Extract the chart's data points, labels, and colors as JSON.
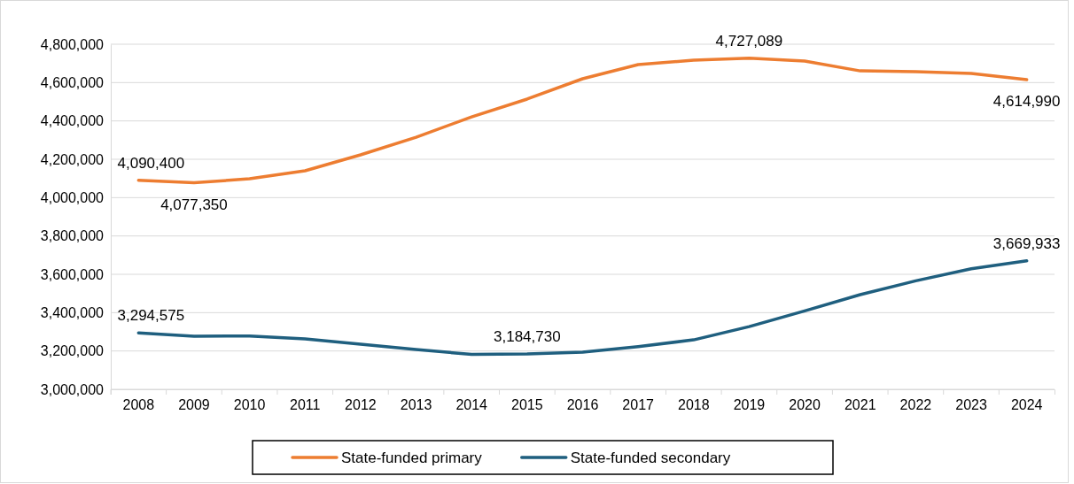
{
  "chart_data": {
    "type": "line",
    "categories": [
      "2008",
      "2009",
      "2010",
      "2011",
      "2012",
      "2013",
      "2014",
      "2015",
      "2016",
      "2017",
      "2018",
      "2019",
      "2020",
      "2021",
      "2022",
      "2023",
      "2024"
    ],
    "series": [
      {
        "name": "State-funded primary",
        "color": "#ed7d31",
        "values": [
          4090400,
          4077350,
          4098000,
          4140000,
          4223000,
          4315000,
          4421000,
          4514000,
          4620000,
          4694000,
          4717000,
          4727089,
          4712000,
          4661000,
          4657000,
          4648000,
          4614990
        ]
      },
      {
        "name": "State-funded secondary",
        "color": "#1f5f7f",
        "values": [
          3294575,
          3277000,
          3278000,
          3263000,
          3235000,
          3208000,
          3182000,
          3184730,
          3194000,
          3223000,
          3258000,
          3327000,
          3409000,
          3494000,
          3566000,
          3629000,
          3669933
        ]
      }
    ],
    "ylim": [
      3000000,
      4800000
    ],
    "yticks": [
      {
        "value": 3000000,
        "label": "3,000,000"
      },
      {
        "value": 3200000,
        "label": "3,200,000"
      },
      {
        "value": 3400000,
        "label": "3,400,000"
      },
      {
        "value": 3600000,
        "label": "3,600,000"
      },
      {
        "value": 3800000,
        "label": "3,800,000"
      },
      {
        "value": 4000000,
        "label": "4,000,000"
      },
      {
        "value": 4200000,
        "label": "4,200,000"
      },
      {
        "value": 4400000,
        "label": "4,400,000"
      },
      {
        "value": 4600000,
        "label": "4,600,000"
      },
      {
        "value": 4800000,
        "label": "4,800,000"
      }
    ],
    "grid": "y",
    "legend": "bottom",
    "marker": "none",
    "line_style": "solid",
    "annotations": [
      {
        "text": "4,090,400",
        "x": "2008",
        "y": 4090400
      },
      {
        "text": "4,077,350",
        "x": "2009",
        "y": 4077350
      },
      {
        "text": "4,727,089",
        "x": "2019",
        "y": 4727089
      },
      {
        "text": "4,614,990",
        "x": "2024",
        "y": 4614990
      },
      {
        "text": "3,294,575",
        "x": "2008",
        "y": 3294575
      },
      {
        "text": "3,184,730",
        "x": "2015",
        "y": 3184730
      },
      {
        "text": "3,669,933",
        "x": "2024",
        "y": 3669933
      }
    ]
  }
}
